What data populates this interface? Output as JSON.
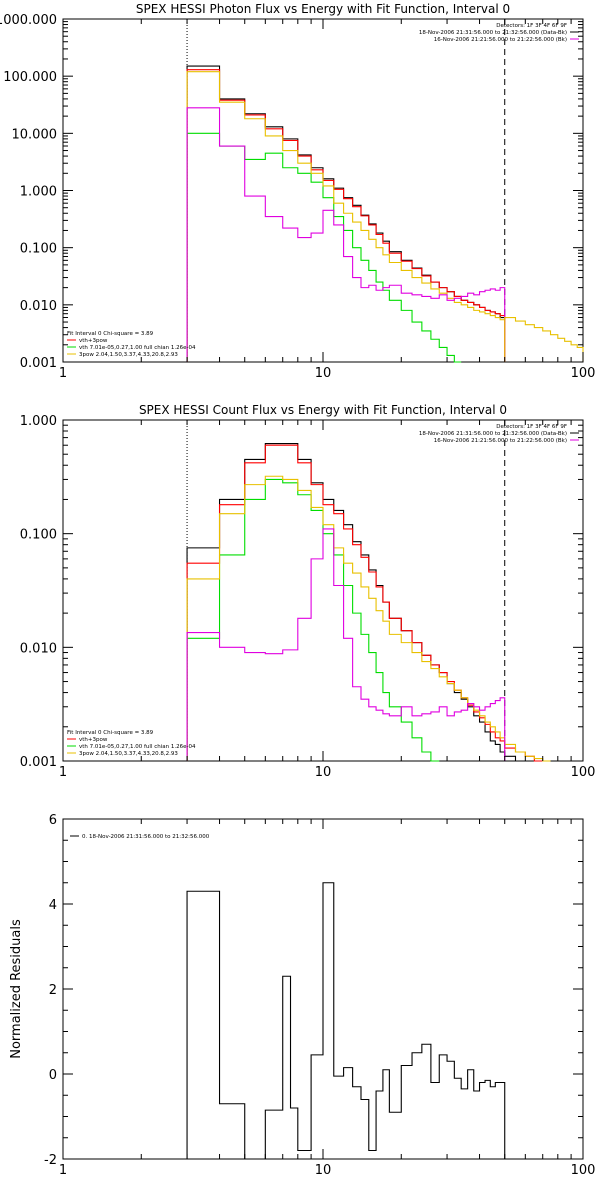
{
  "chart_data": [
    {
      "type": "line",
      "title": "SPEX HESSI Photon Flux vs Energy with Fit Function, Interval 0",
      "xscale": "log",
      "yscale": "log",
      "xlim": [
        1,
        100
      ],
      "ylim": [
        0.001,
        1000
      ],
      "xticks": [
        "1",
        "10",
        "100"
      ],
      "yticks": [
        "1000.000",
        "100.000",
        "10.000",
        "1.000",
        "0.100",
        "0.010",
        "0.001"
      ],
      "vlines": [
        {
          "x": 3,
          "style": "dotted"
        },
        {
          "x": 50,
          "style": "dashed"
        }
      ],
      "legend_top_right": [
        {
          "text": "Detectors: 1F 3F 4F 6F 9F",
          "color": ""
        },
        {
          "text": "18-Nov-2006 21:31:56.000 to 21:32:56.000 (Data-Bk)",
          "color": "#000000"
        },
        {
          "text": "16-Nov-2006 21:21:56.000 to 21:22:56.000 (Bk)",
          "color": "#e000e0"
        }
      ],
      "legend_bottom_left": [
        {
          "text": "Fit Interval 0    Chi-square = 3.89",
          "color": ""
        },
        {
          "text": "vth+3pow",
          "color": "#ff0000"
        },
        {
          "text": "vth 7.01e-05,0.27,1.00   full chian 1.26e-04",
          "color": "#00dd00"
        },
        {
          "text": "3pow 2.04,1.50,3.37,4.33,20.8,2.93",
          "color": "#e8c000"
        }
      ],
      "edges": [
        3,
        4,
        5,
        6,
        7,
        8,
        9,
        10,
        11,
        12,
        13,
        14,
        15,
        16,
        17,
        18,
        20,
        22,
        24,
        26,
        28,
        30,
        32,
        34,
        36,
        38,
        40,
        42,
        44,
        46,
        48,
        50
      ],
      "series": [
        {
          "color": "#000000",
          "values": [
            150,
            40,
            22,
            13,
            8,
            4.2,
            2.5,
            1.6,
            1.1,
            0.75,
            0.55,
            0.37,
            0.26,
            0.18,
            0.13,
            0.085,
            0.06,
            0.044,
            0.033,
            0.025,
            0.02,
            0.017,
            0.014,
            0.012,
            0.011,
            0.01,
            0.009,
            0.008,
            0.0075,
            0.007,
            0.006
          ]
        },
        {
          "color": "#ff0000",
          "values": [
            130,
            38,
            21,
            12,
            7.5,
            4,
            2.3,
            1.5,
            1.05,
            0.72,
            0.52,
            0.36,
            0.25,
            0.17,
            0.12,
            0.08,
            0.058,
            0.043,
            0.032,
            0.025,
            0.02,
            0.017,
            0.014,
            0.012,
            0.011,
            0.01,
            0.009,
            0.008,
            0.0075,
            0.007,
            0.0065
          ]
        },
        {
          "color": "#00dd00",
          "values": [
            10,
            6,
            3.5,
            4.5,
            2.5,
            2,
            1.4,
            0.75,
            0.35,
            0.2,
            0.1,
            0.06,
            0.04,
            0.025,
            0.018,
            0.012,
            0.008,
            0.005,
            0.0035,
            0.0025,
            0.0018,
            0.0013,
            0.001
          ]
        },
        {
          "color": "#e8c000",
          "values": [
            120,
            35,
            18,
            9,
            5,
            3,
            2,
            1.2,
            0.6,
            0.4,
            0.28,
            0.2,
            0.14,
            0.1,
            0.075,
            0.055,
            0.04,
            0.03,
            0.024,
            0.019,
            0.016,
            0.013,
            0.011,
            0.01,
            0.009,
            0.008,
            0.0075,
            0.007,
            0.0065,
            0.006,
            0.0055
          ]
        },
        {
          "color": "#e000e0",
          "values": [
            28,
            6,
            0.8,
            0.35,
            0.22,
            0.15,
            0.18,
            0.45,
            0.25,
            0.07,
            0.03,
            0.02,
            0.022,
            0.018,
            0.02,
            0.022,
            0.016,
            0.015,
            0.014,
            0.013,
            0.015,
            0.012,
            0.013,
            0.014,
            0.016,
            0.015,
            0.017,
            0.018,
            0.019,
            0.018,
            0.02
          ]
        }
      ],
      "tail": {
        "color": "#e8c000",
        "edges": [
          50,
          55,
          60,
          65,
          70,
          75,
          80,
          85,
          90,
          95,
          100
        ],
        "values": [
          0.006,
          0.0052,
          0.0045,
          0.004,
          0.0035,
          0.003,
          0.0026,
          0.0023,
          0.002,
          0.0018
        ]
      }
    },
    {
      "type": "line",
      "title": "SPEX HESSI Count Flux vs Energy with Fit Function, Interval 0",
      "xscale": "log",
      "yscale": "log",
      "xlim": [
        1,
        100
      ],
      "ylim": [
        0.001,
        1
      ],
      "xticks": [
        "1",
        "10",
        "100"
      ],
      "yticks": [
        "1.000",
        "0.100",
        "0.010",
        "0.001"
      ],
      "vlines": [
        {
          "x": 3,
          "style": "dotted"
        },
        {
          "x": 50,
          "style": "dashed"
        }
      ],
      "legend_top_right": [
        {
          "text": "Detectors: 1F 3F 4F 6F 9F",
          "color": ""
        },
        {
          "text": "18-Nov-2006 21:31:56.000 to 21:32:56.000 (Data-Bk)",
          "color": "#000000"
        },
        {
          "text": "16-Nov-2006 21:21:56.000 to 21:22:56.000 (Bk)",
          "color": "#e000e0"
        }
      ],
      "legend_bottom_left": [
        {
          "text": "Fit Interval 0    Chi-square = 3.89",
          "color": ""
        },
        {
          "text": "vth+3pow",
          "color": "#ff0000"
        },
        {
          "text": "vth 7.01e-05,0.27,1.00   full chian 1.26e-04",
          "color": "#00dd00"
        },
        {
          "text": "3pow 2.04,1.50,3.37,4.33,20.8,2.93",
          "color": "#e8c000"
        }
      ],
      "edges": [
        3,
        4,
        5,
        6,
        7,
        8,
        9,
        10,
        11,
        12,
        13,
        14,
        15,
        16,
        17,
        18,
        20,
        22,
        24,
        26,
        28,
        30,
        32,
        34,
        36,
        38,
        40,
        42,
        44,
        46,
        48,
        50,
        55,
        60,
        65,
        70,
        75
      ],
      "series": [
        {
          "color": "#000000",
          "values": [
            0.075,
            0.2,
            0.45,
            0.62,
            0.62,
            0.45,
            0.28,
            0.2,
            0.16,
            0.12,
            0.085,
            0.065,
            0.048,
            0.035,
            0.025,
            0.018,
            0.014,
            0.011,
            0.0085,
            0.007,
            0.006,
            0.0048,
            0.004,
            0.0035,
            0.003,
            0.0025,
            0.0022,
            0.0018,
            0.0015,
            0.0014,
            0.0012,
            0.0011
          ]
        },
        {
          "color": "#ff0000",
          "values": [
            0.055,
            0.18,
            0.42,
            0.6,
            0.6,
            0.42,
            0.27,
            0.18,
            0.15,
            0.11,
            0.08,
            0.062,
            0.046,
            0.034,
            0.025,
            0.018,
            0.014,
            0.011,
            0.0085,
            0.007,
            0.006,
            0.005,
            0.0042,
            0.0036,
            0.0031,
            0.0027,
            0.0024,
            0.0021,
            0.0018,
            0.0016,
            0.0015,
            0.0013,
            0.0012,
            0.0011,
            0.001
          ]
        },
        {
          "color": "#00dd00",
          "values": [
            0.012,
            0.065,
            0.2,
            0.3,
            0.28,
            0.22,
            0.16,
            0.1,
            0.065,
            0.035,
            0.02,
            0.013,
            0.009,
            0.006,
            0.004,
            0.003,
            0.0022,
            0.0016,
            0.0012,
            0.001
          ]
        },
        {
          "color": "#e8c000",
          "values": [
            0.04,
            0.15,
            0.27,
            0.32,
            0.3,
            0.24,
            0.17,
            0.12,
            0.075,
            0.055,
            0.045,
            0.034,
            0.027,
            0.021,
            0.017,
            0.013,
            0.011,
            0.009,
            0.0075,
            0.0065,
            0.0055,
            0.0048,
            0.0042,
            0.0036,
            0.0032,
            0.0028,
            0.0025,
            0.0022,
            0.002,
            0.0018,
            0.0016,
            0.0014,
            0.0012,
            0.0011,
            0.00105,
            0.001
          ]
        },
        {
          "color": "#e000e0",
          "values": [
            0.0135,
            0.01,
            0.009,
            0.0088,
            0.0095,
            0.018,
            0.06,
            0.11,
            0.035,
            0.012,
            0.0045,
            0.0035,
            0.003,
            0.0028,
            0.0026,
            0.0025,
            0.003,
            0.0025,
            0.0026,
            0.0027,
            0.003,
            0.0025,
            0.0027,
            0.0028,
            0.0032,
            0.003,
            0.0028,
            0.003,
            0.0032,
            0.0034,
            0.0036
          ]
        }
      ]
    },
    {
      "type": "line",
      "title": "",
      "ylabel": "Normalized Residuals",
      "xscale": "log",
      "yscale": "linear",
      "xlim": [
        1,
        100
      ],
      "ylim": [
        -2,
        6
      ],
      "xticks": [
        "1",
        "10",
        "100"
      ],
      "yticks": [
        "-2",
        "0",
        "2",
        "4",
        "6"
      ],
      "legend": [
        {
          "text": "0. 18-Nov-2006 21:31:56.000 to 21:32:56.000",
          "color": "#000000"
        }
      ],
      "edges": [
        3,
        4,
        5,
        6,
        7,
        7.5,
        8,
        9,
        10,
        11,
        12,
        13,
        14,
        15,
        16,
        17,
        18,
        20,
        22,
        24,
        26,
        28,
        30,
        32,
        34,
        36,
        38,
        40,
        42,
        44,
        46,
        48,
        50
      ],
      "series": [
        {
          "color": "#000000",
          "values": [
            4.3,
            -0.7,
            -2,
            -0.85,
            2.3,
            -0.8,
            -1.8,
            0.45,
            4.5,
            -0.05,
            0.15,
            -0.3,
            -0.6,
            -1.8,
            -0.4,
            0.1,
            -0.9,
            0.2,
            0.5,
            0.7,
            -0.2,
            0.45,
            0.3,
            -0.1,
            -0.35,
            0.1,
            -0.4,
            -0.2,
            -0.15,
            -0.3,
            -0.2,
            -0.2
          ]
        }
      ]
    }
  ]
}
